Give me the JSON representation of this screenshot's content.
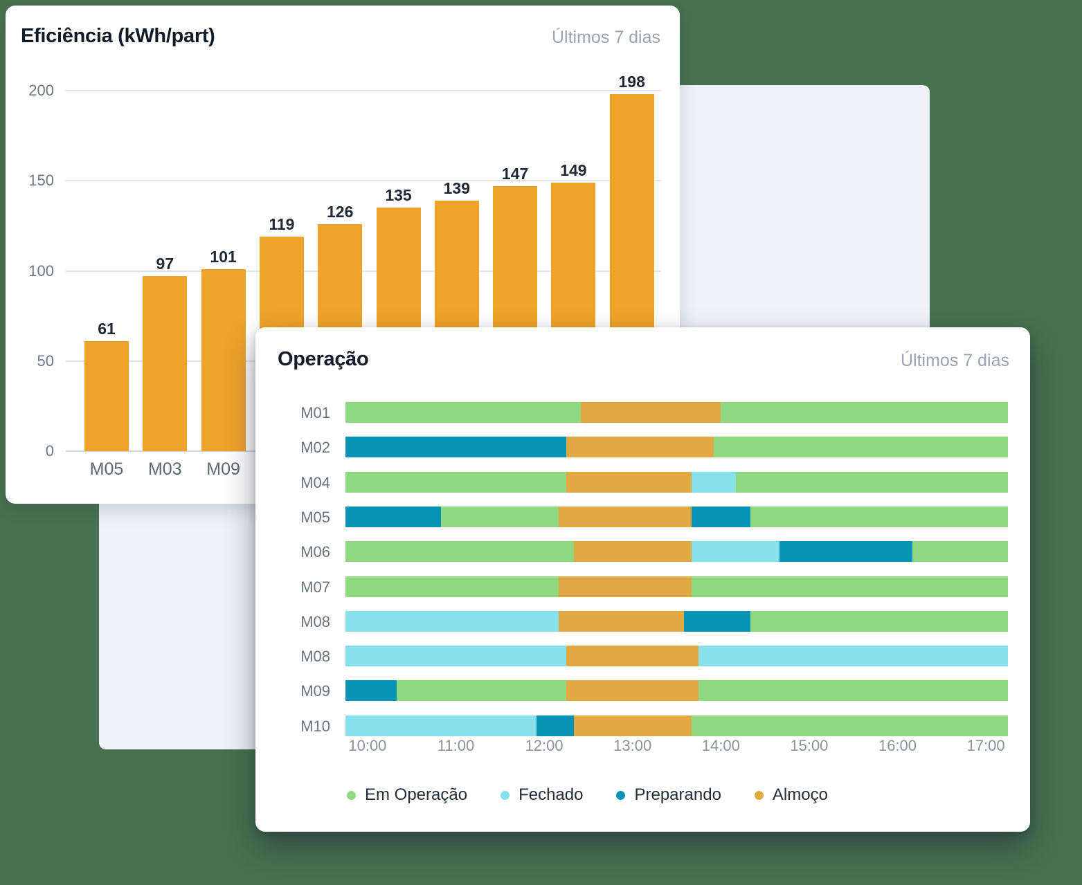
{
  "page": {
    "background_color": "#47714F",
    "panel_color": "#EFF2F8"
  },
  "cards": {
    "efficiency": {
      "title": "Eficiência (kWh/part)",
      "period": "Últimos 7 dias"
    },
    "operation": {
      "title": "Operação",
      "period": "Últimos 7 dias"
    }
  },
  "chart_data": [
    {
      "type": "bar",
      "title": "Eficiência (kWh/part)",
      "period_label": "Últimos 7 dias",
      "categories": [
        "M05",
        "M03",
        "M09",
        "",
        "",
        "",
        "",
        "",
        "",
        ""
      ],
      "values": [
        61,
        97,
        101,
        119,
        126,
        135,
        139,
        147,
        149,
        198
      ],
      "ylim": [
        0,
        200
      ],
      "yticks": [
        0,
        50,
        100,
        150,
        200
      ],
      "bar_color": "#F0A32B",
      "grid": true,
      "note": "category labels of bars 4-10 are hidden behind the overlapping Operação card"
    },
    {
      "type": "bar",
      "subtype": "gantt-timeline",
      "title": "Operação",
      "period_label": "Últimos 7 dias",
      "x_axis": {
        "start": "09:45",
        "end": "17:15",
        "ticks": [
          "10:00",
          "11:00",
          "12:00",
          "13:00",
          "14:00",
          "15:00",
          "16:00",
          "17:00"
        ]
      },
      "statuses": {
        "operacao": {
          "label": "Em Operação",
          "color": "#90D981"
        },
        "fechado": {
          "label": "Fechado",
          "color": "#88E0ED"
        },
        "preparando": {
          "label": "Preparando",
          "color": "#0894B6"
        },
        "almoco": {
          "label": "Almoço",
          "color": "#E1A943"
        }
      },
      "legend": [
        "operacao",
        "fechado",
        "preparando",
        "almoco"
      ],
      "legend_position": "bottom",
      "rows": [
        {
          "label": "M01",
          "segments": [
            {
              "status": "operacao",
              "start": "09:45",
              "end": "12:25"
            },
            {
              "status": "almoco",
              "start": "12:25",
              "end": "14:00"
            },
            {
              "status": "operacao",
              "start": "14:00",
              "end": "17:15"
            }
          ]
        },
        {
          "label": "M02",
          "segments": [
            {
              "status": "preparando",
              "start": "09:45",
              "end": "12:15"
            },
            {
              "status": "almoco",
              "start": "12:15",
              "end": "13:55"
            },
            {
              "status": "operacao",
              "start": "13:55",
              "end": "17:15"
            }
          ]
        },
        {
          "label": "M04",
          "segments": [
            {
              "status": "operacao",
              "start": "09:45",
              "end": "12:15"
            },
            {
              "status": "almoco",
              "start": "12:15",
              "end": "13:40"
            },
            {
              "status": "fechado",
              "start": "13:40",
              "end": "14:10"
            },
            {
              "status": "operacao",
              "start": "14:10",
              "end": "17:15"
            }
          ]
        },
        {
          "label": "M05",
          "segments": [
            {
              "status": "preparando",
              "start": "09:45",
              "end": "10:50"
            },
            {
              "status": "operacao",
              "start": "10:50",
              "end": "12:10"
            },
            {
              "status": "almoco",
              "start": "12:10",
              "end": "13:40"
            },
            {
              "status": "preparando",
              "start": "13:40",
              "end": "14:20"
            },
            {
              "status": "operacao",
              "start": "14:20",
              "end": "17:15"
            }
          ]
        },
        {
          "label": "M06",
          "segments": [
            {
              "status": "operacao",
              "start": "09:45",
              "end": "12:20"
            },
            {
              "status": "almoco",
              "start": "12:20",
              "end": "13:40"
            },
            {
              "status": "fechado",
              "start": "13:40",
              "end": "14:40"
            },
            {
              "status": "preparando",
              "start": "14:40",
              "end": "16:10"
            },
            {
              "status": "operacao",
              "start": "16:10",
              "end": "17:15"
            }
          ]
        },
        {
          "label": "M07",
          "segments": [
            {
              "status": "operacao",
              "start": "09:45",
              "end": "12:10"
            },
            {
              "status": "almoco",
              "start": "12:10",
              "end": "13:40"
            },
            {
              "status": "operacao",
              "start": "13:40",
              "end": "17:15"
            }
          ]
        },
        {
          "label": "M08",
          "segments": [
            {
              "status": "fechado",
              "start": "09:45",
              "end": "12:10"
            },
            {
              "status": "almoco",
              "start": "12:10",
              "end": "13:35"
            },
            {
              "status": "preparando",
              "start": "13:35",
              "end": "14:20"
            },
            {
              "status": "operacao",
              "start": "14:20",
              "end": "17:15"
            }
          ]
        },
        {
          "label": "M08",
          "segments": [
            {
              "status": "fechado",
              "start": "09:45",
              "end": "12:15"
            },
            {
              "status": "almoco",
              "start": "12:15",
              "end": "13:45"
            },
            {
              "status": "fechado",
              "start": "13:45",
              "end": "17:15"
            }
          ]
        },
        {
          "label": "M09",
          "segments": [
            {
              "status": "preparando",
              "start": "09:45",
              "end": "10:20"
            },
            {
              "status": "operacao",
              "start": "10:20",
              "end": "12:15"
            },
            {
              "status": "almoco",
              "start": "12:15",
              "end": "13:45"
            },
            {
              "status": "operacao",
              "start": "13:45",
              "end": "17:15"
            }
          ]
        },
        {
          "label": "M10",
          "segments": [
            {
              "status": "fechado",
              "start": "09:45",
              "end": "11:55"
            },
            {
              "status": "preparando",
              "start": "11:55",
              "end": "12:20"
            },
            {
              "status": "almoco",
              "start": "12:20",
              "end": "13:40"
            },
            {
              "status": "operacao",
              "start": "13:40",
              "end": "17:15"
            }
          ]
        }
      ]
    }
  ]
}
